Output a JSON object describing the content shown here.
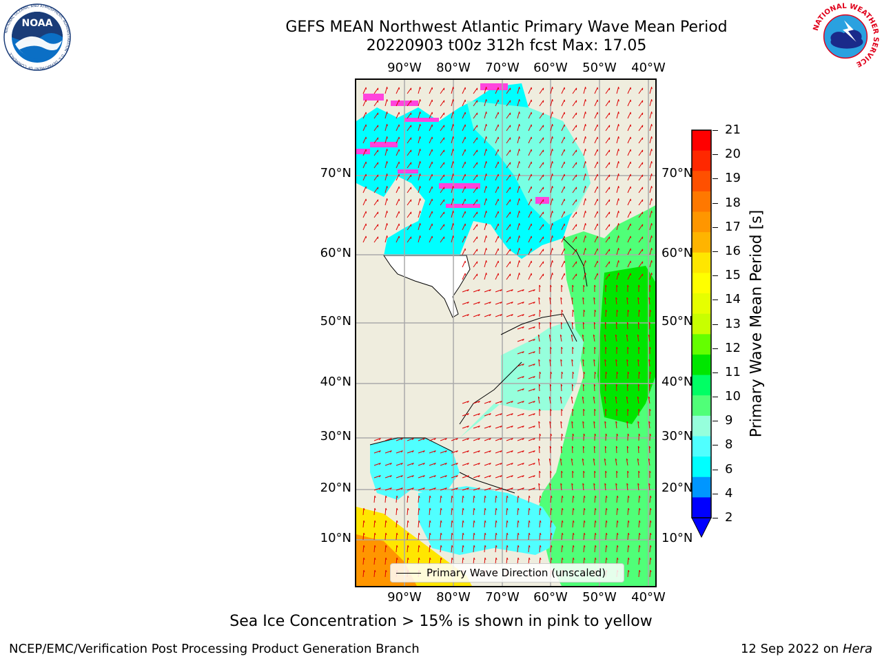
{
  "title": {
    "line1": "GEFS MEAN Northwest Atlantic Primary Wave Mean Period",
    "line2": "20220903 t00z 312h fcst   Max: 17.05"
  },
  "map": {
    "lon_labels": [
      "90°W",
      "80°W",
      "70°W",
      "60°W",
      "50°W",
      "40°W"
    ],
    "lat_labels": [
      "70°N",
      "60°N",
      "50°N",
      "40°N",
      "30°N",
      "20°N",
      "10°N"
    ],
    "legend_label": "Primary Wave Direction (unscaled)",
    "land_color": "#efedde",
    "arrow_color": "#dd0000"
  },
  "colorbar": {
    "title": "Primary Wave Mean Period [s]",
    "ticks": [
      "21",
      "20",
      "19",
      "18",
      "17",
      "16",
      "15",
      "14",
      "13",
      "12",
      "11",
      "10",
      "9",
      "8",
      "6",
      "4",
      "2"
    ],
    "colors": [
      "#ff0000",
      "#ff2800",
      "#ff5000",
      "#ff7800",
      "#ff9600",
      "#ffb400",
      "#ffe600",
      "#ffff00",
      "#e6ff00",
      "#c8ff00",
      "#64ff00",
      "#00e600",
      "#00ff64",
      "#50ff78",
      "#96ffdc",
      "#50ffff",
      "#00ffff",
      "#0096ff",
      "#0000ff"
    ],
    "extend_color": "#0000ff"
  },
  "note": "Sea Ice Concentration > 15% is shown in pink to yellow",
  "footer": {
    "left": "NCEP/EMC/Verification Post Processing Product Generation Branch",
    "date": "12 Sep 2022 on",
    "host": "Hera"
  },
  "logos": {
    "noaa_text": "NOAA",
    "noaa_ring": "NATIONAL OCEANIC AND ATMOSPHERIC ADMINISTRATION · U.S. DEPARTMENT OF COMMERCE",
    "nws_ring": "NATIONAL WEATHER SERVICE"
  }
}
